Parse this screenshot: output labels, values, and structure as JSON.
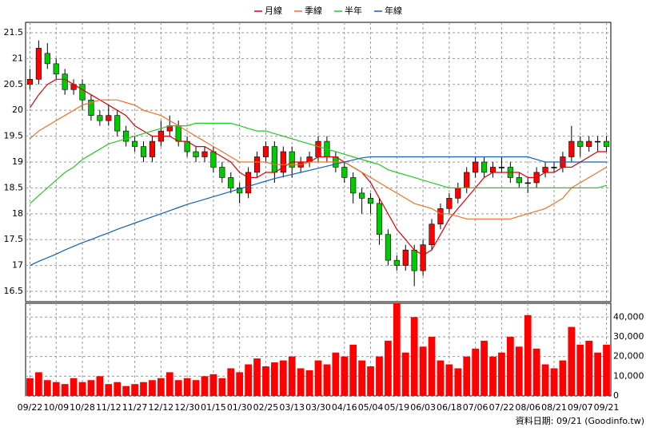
{
  "chart_data": {
    "type": "candlestick",
    "legend_position": "top",
    "grid": true,
    "categories": [
      "09/22",
      null,
      null,
      "10/09",
      null,
      null,
      "10/28",
      null,
      null,
      "11/12",
      null,
      null,
      "11/27",
      null,
      null,
      "12/12",
      null,
      null,
      "12/30",
      null,
      null,
      "01/15",
      null,
      null,
      "01/30",
      null,
      null,
      "02/25",
      null,
      null,
      "03/13",
      null,
      null,
      "03/30",
      null,
      null,
      "04/16",
      null,
      null,
      "05/04",
      null,
      null,
      "05/19",
      null,
      null,
      "06/03",
      null,
      null,
      "06/18",
      null,
      null,
      "07/06",
      null,
      null,
      "07/22",
      null,
      null,
      "08/06",
      null,
      null,
      "08/21",
      null,
      null,
      "09/07",
      null,
      null,
      "09/21"
    ],
    "open": [
      20.5,
      20.6,
      21.1,
      20.9,
      20.7,
      20.4,
      20.5,
      20.2,
      19.9,
      19.8,
      19.9,
      19.6,
      19.4,
      19.3,
      19.1,
      19.4,
      19.6,
      19.7,
      19.4,
      19.2,
      19.1,
      19.2,
      18.9,
      18.7,
      18.5,
      18.4,
      18.8,
      19.1,
      19.3,
      18.8,
      19.2,
      18.9,
      19.0,
      19.1,
      19.4,
      19.1,
      18.9,
      18.7,
      18.4,
      18.3,
      18.2,
      17.6,
      17.1,
      17.0,
      17.3,
      16.9,
      17.4,
      17.8,
      18.1,
      18.3,
      18.5,
      18.8,
      19.0,
      18.8,
      18.9,
      18.9,
      18.7,
      18.6,
      18.6,
      18.8,
      18.9,
      18.9,
      19.1,
      19.4,
      19.3,
      19.4,
      19.4
    ],
    "high": [
      20.8,
      21.35,
      21.3,
      21.0,
      20.8,
      20.6,
      20.6,
      20.3,
      20.0,
      20.1,
      20.0,
      19.7,
      19.5,
      19.4,
      19.5,
      19.8,
      19.9,
      19.8,
      19.5,
      19.3,
      19.3,
      19.3,
      19.0,
      18.8,
      18.6,
      18.9,
      19.2,
      19.4,
      19.4,
      19.3,
      19.3,
      19.1,
      19.2,
      19.5,
      19.5,
      19.2,
      19.0,
      18.8,
      18.5,
      18.4,
      18.3,
      17.7,
      17.2,
      17.4,
      17.4,
      17.5,
      17.9,
      18.2,
      18.4,
      18.6,
      18.9,
      19.1,
      19.1,
      19.0,
      19.1,
      19.0,
      18.8,
      18.7,
      18.9,
      19.0,
      19.0,
      19.2,
      19.7,
      19.5,
      19.5,
      19.5,
      19.5
    ],
    "low": [
      20.4,
      20.5,
      20.8,
      20.6,
      20.3,
      20.3,
      20.0,
      19.8,
      19.7,
      19.7,
      19.5,
      19.3,
      19.2,
      19.0,
      19.0,
      19.3,
      19.5,
      19.3,
      19.1,
      19.0,
      19.0,
      18.8,
      18.6,
      18.4,
      18.2,
      18.3,
      18.7,
      19.0,
      18.6,
      18.7,
      18.7,
      18.8,
      18.9,
      19.0,
      19.0,
      18.8,
      18.6,
      18.2,
      18.0,
      18.0,
      17.4,
      17.0,
      16.9,
      16.9,
      16.6,
      16.8,
      17.3,
      17.7,
      18.0,
      18.2,
      18.4,
      18.7,
      18.7,
      18.7,
      18.8,
      18.6,
      18.5,
      18.4,
      18.5,
      18.7,
      18.8,
      18.8,
      19.0,
      19.1,
      19.2,
      19.2,
      19.2
    ],
    "close": [
      20.6,
      21.2,
      20.9,
      20.7,
      20.4,
      20.5,
      20.2,
      19.9,
      19.8,
      19.9,
      19.6,
      19.4,
      19.3,
      19.1,
      19.4,
      19.6,
      19.7,
      19.4,
      19.2,
      19.1,
      19.2,
      18.9,
      18.7,
      18.5,
      18.4,
      18.8,
      19.1,
      19.3,
      18.8,
      19.2,
      18.9,
      19.0,
      19.1,
      19.4,
      19.1,
      18.9,
      18.7,
      18.4,
      18.3,
      18.2,
      17.6,
      17.1,
      17.0,
      17.3,
      16.9,
      17.4,
      17.8,
      18.1,
      18.3,
      18.5,
      18.8,
      19.0,
      18.8,
      18.9,
      18.9,
      18.7,
      18.6,
      18.6,
      18.8,
      18.9,
      18.9,
      19.1,
      19.4,
      19.3,
      19.4,
      19.4,
      19.3
    ],
    "up_color": "#ff0000",
    "down_color": "#00cc00",
    "series": [
      {
        "name": "月線",
        "color": "#e00000",
        "values": [
          20.05,
          20.3,
          20.5,
          20.6,
          20.6,
          20.5,
          20.4,
          20.3,
          20.2,
          20.1,
          20.0,
          19.9,
          19.7,
          19.6,
          19.5,
          19.5,
          19.5,
          19.4,
          19.4,
          19.3,
          19.3,
          19.2,
          19.1,
          19.0,
          18.8,
          18.7,
          18.7,
          18.8,
          18.8,
          18.9,
          19.0,
          19.0,
          19.0,
          19.1,
          19.1,
          19.1,
          19.0,
          18.9,
          18.8,
          18.6,
          18.3,
          18.0,
          17.7,
          17.5,
          17.3,
          17.2,
          17.3,
          17.6,
          17.9,
          18.1,
          18.3,
          18.5,
          18.7,
          18.8,
          18.8,
          18.8,
          18.8,
          18.7,
          18.7,
          18.8,
          18.8,
          18.9,
          18.9,
          19.0,
          19.1,
          19.2,
          19.2
        ]
      },
      {
        "name": "季線",
        "color": "#f07020",
        "values": [
          19.45,
          19.6,
          19.7,
          19.8,
          19.9,
          20.0,
          20.1,
          20.15,
          20.2,
          20.2,
          20.2,
          20.15,
          20.1,
          20.0,
          19.95,
          19.9,
          19.8,
          19.7,
          19.6,
          19.5,
          19.4,
          19.3,
          19.2,
          19.1,
          19.0,
          19.0,
          19.0,
          19.0,
          18.95,
          18.95,
          18.95,
          18.95,
          19.0,
          19.0,
          19.0,
          19.0,
          19.0,
          18.9,
          18.8,
          18.7,
          18.6,
          18.5,
          18.4,
          18.3,
          18.2,
          18.15,
          18.1,
          18.0,
          18.0,
          17.95,
          17.9,
          17.9,
          17.9,
          17.9,
          17.9,
          17.9,
          17.95,
          18.0,
          18.05,
          18.1,
          18.2,
          18.3,
          18.5,
          18.6,
          18.7,
          18.8,
          18.9
        ]
      },
      {
        "name": "半年",
        "color": "#22cc22",
        "values": [
          18.2,
          18.35,
          18.5,
          18.65,
          18.8,
          18.9,
          19.05,
          19.15,
          19.25,
          19.35,
          19.4,
          19.45,
          19.5,
          19.55,
          19.6,
          19.65,
          19.7,
          19.7,
          19.7,
          19.75,
          19.75,
          19.75,
          19.75,
          19.75,
          19.7,
          19.65,
          19.6,
          19.6,
          19.55,
          19.5,
          19.45,
          19.4,
          19.35,
          19.3,
          19.25,
          19.2,
          19.15,
          19.1,
          19.05,
          19.0,
          18.95,
          18.85,
          18.8,
          18.75,
          18.7,
          18.65,
          18.6,
          18.55,
          18.5,
          18.5,
          18.5,
          18.5,
          18.5,
          18.5,
          18.5,
          18.5,
          18.5,
          18.5,
          18.5,
          18.5,
          18.5,
          18.5,
          18.5,
          18.5,
          18.5,
          18.5,
          18.55
        ]
      },
      {
        "name": "年線",
        "color": "#1060c0",
        "values": [
          17.0,
          17.08,
          17.15,
          17.22,
          17.3,
          17.37,
          17.44,
          17.5,
          17.57,
          17.63,
          17.7,
          17.76,
          17.82,
          17.88,
          17.94,
          18.0,
          18.06,
          18.12,
          18.18,
          18.23,
          18.28,
          18.33,
          18.38,
          18.43,
          18.48,
          18.53,
          18.58,
          18.63,
          18.68,
          18.72,
          18.76,
          18.8,
          18.84,
          18.88,
          18.92,
          18.96,
          19.0,
          19.04,
          19.08,
          19.1,
          19.1,
          19.1,
          19.1,
          19.1,
          19.1,
          19.1,
          19.1,
          19.1,
          19.1,
          19.1,
          19.1,
          19.1,
          19.1,
          19.1,
          19.1,
          19.1,
          19.1,
          19.1,
          19.05,
          19.0,
          19.0,
          19.0,
          19.0,
          19.0,
          19.0,
          19.0,
          19.0
        ]
      }
    ],
    "ylim": [
      16.3,
      21.7
    ],
    "yticks": [
      16.5,
      17,
      17.5,
      18,
      18.5,
      19,
      19.5,
      20,
      20.5,
      21,
      21.5
    ],
    "volume": {
      "type": "bar",
      "color": "#ff0000",
      "values": [
        9000,
        12000,
        8000,
        7000,
        6000,
        9000,
        7000,
        8000,
        10000,
        6000,
        7000,
        5000,
        6000,
        7000,
        8000,
        9000,
        12000,
        8000,
        9000,
        8000,
        10000,
        11000,
        9000,
        14000,
        12000,
        16000,
        19000,
        15000,
        17000,
        18000,
        20000,
        14000,
        13000,
        18000,
        16000,
        22000,
        20000,
        26000,
        18000,
        15000,
        20000,
        28000,
        47000,
        22000,
        40000,
        25000,
        30000,
        18000,
        16000,
        14000,
        20000,
        24000,
        28000,
        20000,
        22000,
        30000,
        25000,
        41000,
        24000,
        16000,
        14000,
        18000,
        35000,
        26000,
        28000,
        22000,
        26000
      ],
      "ylim": [
        0,
        47000
      ],
      "yticks": [
        0,
        {
          "value": 10000,
          "label": "10,000"
        },
        {
          "value": 20000,
          "label": "20,000"
        },
        {
          "value": 30000,
          "label": "30,000"
        },
        {
          "value": 40000,
          "label": "40,000"
        }
      ]
    },
    "footer": "資料日期: 09/21 (Goodinfo.tw)"
  }
}
